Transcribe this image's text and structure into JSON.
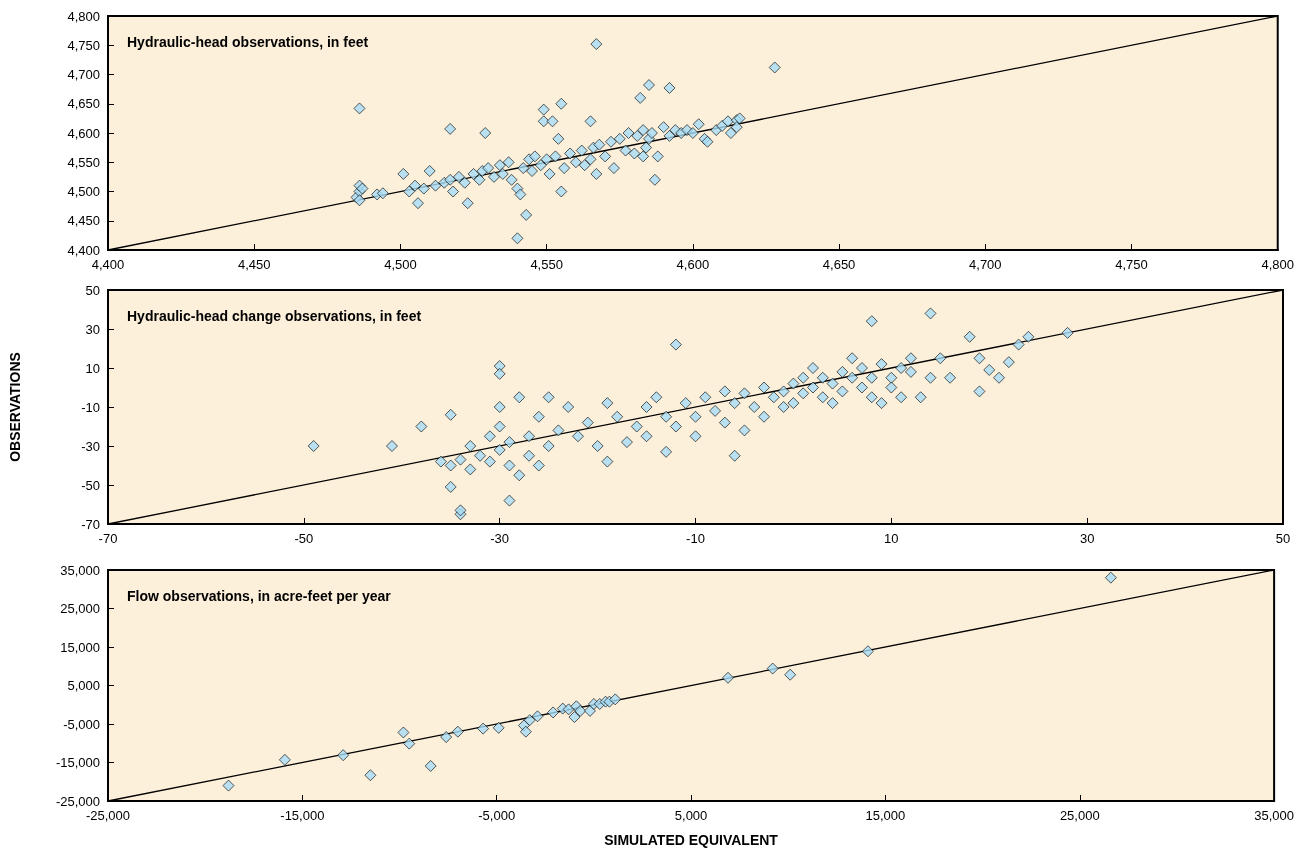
{
  "chart_data": [
    {
      "type": "scatter",
      "title": "Hydraulic-head observations, in feet",
      "marker": "diamond",
      "grid": false,
      "xlim": [
        4400,
        4800
      ],
      "ylim": [
        4400,
        4800
      ],
      "xticks": [
        {
          "value": 4400,
          "label": "4,400"
        },
        {
          "value": 4450,
          "label": "4,450"
        },
        {
          "value": 4500,
          "label": "4,500"
        },
        {
          "value": 4550,
          "label": "4,550"
        },
        {
          "value": 4600,
          "label": "4,600"
        },
        {
          "value": 4650,
          "label": "4,650"
        },
        {
          "value": 4700,
          "label": "4,700"
        },
        {
          "value": 4750,
          "label": "4,750"
        },
        {
          "value": 4800,
          "label": "4,800"
        }
      ],
      "yticks": [
        {
          "value": 4400,
          "label": "4,400"
        },
        {
          "value": 4450,
          "label": "4,450"
        },
        {
          "value": 4500,
          "label": "4,500"
        },
        {
          "value": 4550,
          "label": "4,550"
        },
        {
          "value": 4600,
          "label": "4,600"
        },
        {
          "value": 4650,
          "label": "4,650"
        },
        {
          "value": 4700,
          "label": "4,700"
        },
        {
          "value": 4750,
          "label": "4,750"
        },
        {
          "value": 4800,
          "label": "4,800"
        }
      ],
      "series": [
        {
          "type": "line",
          "color": "#000000",
          "marker": "none",
          "x": [
            4400,
            4800
          ],
          "values": [
            4400,
            4800
          ]
        },
        {
          "color": "#a6dcf5",
          "x": [
            4485,
            4486,
            4486,
            4487,
            4486,
            4492,
            4494,
            4501,
            4503,
            4505,
            4506,
            4508,
            4510,
            4512,
            4515,
            4517,
            4518,
            4520,
            4522,
            4523,
            4525,
            4527,
            4528,
            4530,
            4532,
            4534,
            4535,
            4537,
            4538,
            4540,
            4541,
            4542,
            4544,
            4545,
            4546,
            4548,
            4549,
            4550,
            4551,
            4552,
            4553,
            4554,
            4555,
            4556,
            4558,
            4560,
            4562,
            4563,
            4565,
            4566,
            4567,
            4568,
            4570,
            4572,
            4573,
            4575,
            4577,
            4578,
            4580,
            4581,
            4583,
            4584,
            4585,
            4586,
            4588,
            4590,
            4592,
            4594,
            4596,
            4598,
            4600,
            4602,
            4604,
            4605,
            4608,
            4610,
            4612,
            4613,
            4615,
            4615,
            4616,
            4565,
            4486,
            4567,
            4628,
            4517,
            4529,
            4540,
            4543,
            4555,
            4549,
            4582,
            4585,
            4592,
            4587,
            4583
          ],
          "values": [
            4490,
            4500,
            4510,
            4505,
            4485,
            4495,
            4497,
            4530,
            4500,
            4510,
            4480,
            4505,
            4535,
            4510,
            4515,
            4520,
            4500,
            4525,
            4515,
            4480,
            4530,
            4520,
            4535,
            4540,
            4525,
            4545,
            4530,
            4550,
            4520,
            4505,
            4495,
            4540,
            4555,
            4535,
            4560,
            4545,
            4620,
            4555,
            4530,
            4620,
            4560,
            4590,
            4500,
            4540,
            4565,
            4550,
            4570,
            4545,
            4555,
            4575,
            4530,
            4580,
            4560,
            4585,
            4540,
            4590,
            4570,
            4600,
            4565,
            4595,
            4605,
            4575,
            4590,
            4600,
            4560,
            4610,
            4595,
            4605,
            4600,
            4605,
            4600,
            4615,
            4590,
            4585,
            4605,
            4612,
            4620,
            4600,
            4622,
            4610,
            4625,
            4620,
            4642,
            4752,
            4712,
            4607,
            4600,
            4420,
            4460,
            4650,
            4640,
            4660,
            4682,
            4677,
            4520,
            4560
          ]
        }
      ]
    },
    {
      "type": "scatter",
      "title": "Hydraulic-head change observations, in feet",
      "ylabel": "OBSERVATIONS",
      "marker": "diamond",
      "grid": false,
      "xlim": [
        -70,
        50
      ],
      "ylim": [
        -70,
        50
      ],
      "xticks": [
        -70,
        -50,
        -30,
        -10,
        10,
        30,
        50
      ],
      "yticks": [
        -70,
        -50,
        -30,
        -10,
        10,
        30,
        50
      ],
      "series": [
        {
          "type": "line",
          "color": "#000000",
          "marker": "none",
          "x": [
            -70,
            50
          ],
          "values": [
            -70,
            50
          ]
        },
        {
          "color": "#a6dcf5",
          "x": [
            -49,
            -41,
            -38,
            -35,
            -35,
            -34,
            -34,
            -30,
            -30,
            -29,
            -12,
            -6,
            8,
            14,
            18,
            28,
            24,
            23,
            22,
            21,
            19,
            20,
            19,
            -36,
            -35,
            -34,
            -33,
            -33,
            -32,
            -31,
            -31,
            -30,
            -30,
            -30,
            -29,
            -29,
            -28,
            -28,
            -27,
            -27,
            -26,
            -26,
            -25,
            -25,
            -24,
            -23,
            -22,
            -21,
            -20,
            -19,
            -19,
            -18,
            -17,
            -16,
            -15,
            -15,
            -14,
            -13,
            -13,
            -12,
            -11,
            -10,
            -10,
            -9,
            -8,
            -7,
            -7,
            -6,
            -5,
            -5,
            -4,
            -3,
            -3,
            -2,
            -1,
            -1,
            0,
            0,
            1,
            1,
            2,
            2,
            3,
            3,
            4,
            4,
            5,
            5,
            6,
            6,
            7,
            7,
            8,
            8,
            9,
            9,
            10,
            10,
            11,
            11,
            12,
            12,
            13,
            14,
            15,
            16
          ],
          "values": [
            -30,
            -30,
            -20,
            -14,
            -51,
            -65,
            -63,
            11,
            7,
            -58,
            22,
            -35,
            34,
            38,
            26,
            28,
            26,
            22,
            13,
            5,
            -2,
            9,
            15,
            -38,
            -40,
            -37,
            -30,
            -42,
            -35,
            -25,
            -38,
            -20,
            -32,
            -10,
            -40,
            -28,
            -5,
            -45,
            -25,
            -35,
            -15,
            -40,
            -5,
            -30,
            -22,
            -10,
            -25,
            -18,
            -30,
            -38,
            -8,
            -15,
            -28,
            -20,
            -10,
            -25,
            -5,
            -15,
            -33,
            -20,
            -8,
            -15,
            -25,
            -5,
            -12,
            -18,
            -2,
            -8,
            -22,
            -3,
            -10,
            0,
            -15,
            -5,
            -2,
            -10,
            2,
            -8,
            5,
            -3,
            0,
            10,
            -5,
            5,
            -8,
            2,
            8,
            -2,
            5,
            15,
            0,
            10,
            -5,
            5,
            12,
            -8,
            5,
            0,
            10,
            -5,
            15,
            8,
            -5,
            5,
            15,
            5
          ]
        }
      ]
    },
    {
      "type": "scatter",
      "title": "Flow observations, in acre-feet per year",
      "xlabel": "SIMULATED EQUIVALENT",
      "marker": "diamond",
      "grid": false,
      "xlim": [
        -25000,
        35000
      ],
      "ylim": [
        -25000,
        35000
      ],
      "xticks": [
        {
          "value": -25000,
          "label": "-25,000"
        },
        {
          "value": -15000,
          "label": "-15,000"
        },
        {
          "value": -5000,
          "label": "-5,000"
        },
        {
          "value": 5000,
          "label": "5,000"
        },
        {
          "value": 15000,
          "label": "15,000"
        },
        {
          "value": 25000,
          "label": "25,000"
        },
        {
          "value": 35000,
          "label": "35,000"
        }
      ],
      "yticks": [
        {
          "value": -25000,
          "label": "-25,000"
        },
        {
          "value": -15000,
          "label": "-15,000"
        },
        {
          "value": -5000,
          "label": "-5,000"
        },
        {
          "value": 5000,
          "label": "5,000"
        },
        {
          "value": 15000,
          "label": "15,000"
        },
        {
          "value": 25000,
          "label": "25,000"
        },
        {
          "value": 35000,
          "label": "35,000"
        }
      ],
      "series": [
        {
          "type": "line",
          "color": "#000000",
          "marker": "none",
          "x": [
            -25000,
            35000
          ],
          "values": [
            -25000,
            35000
          ]
        },
        {
          "color": "#a6dcf5",
          "x": [
            -18800,
            -15900,
            -12900,
            -11500,
            -9800,
            -9500,
            -8400,
            -7600,
            -7000,
            -5700,
            -4900,
            -3600,
            -3500,
            -3300,
            -2900,
            -2100,
            -1600,
            -1300,
            -1000,
            -900,
            -700,
            -200,
            0,
            300,
            600,
            800,
            1100,
            6900,
            9200,
            10100,
            14100,
            26600
          ],
          "values": [
            -21000,
            -14300,
            -13100,
            -18300,
            -7200,
            -10100,
            -15900,
            -8400,
            -7000,
            -6200,
            -6000,
            -5400,
            -7000,
            -4000,
            -3000,
            -2000,
            -1000,
            -1200,
            -3200,
            -400,
            -1600,
            -1600,
            200,
            200,
            800,
            800,
            1400,
            7000,
            9400,
            7800,
            13900,
            33000
          ]
        }
      ]
    }
  ]
}
